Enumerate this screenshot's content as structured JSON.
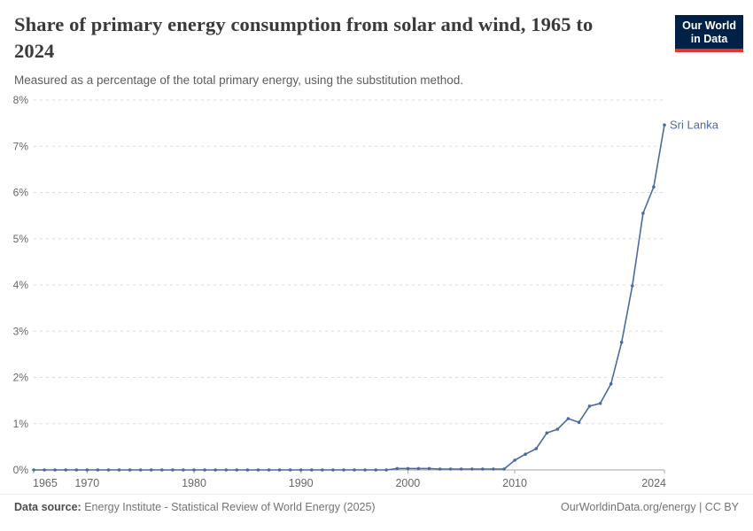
{
  "header": {
    "title_lines": [
      "Share of primary energy consumption from solar and wind, 1965 to",
      "2024"
    ],
    "subtitle": "Measured as a percentage of the total primary energy, using the substitution method."
  },
  "logo": {
    "line1": "Our World",
    "line2": "in Data",
    "bg_color": "#002147",
    "accent_color": "#e0362b",
    "text_color": "#ffffff"
  },
  "footer": {
    "datasource_label": "Data source:",
    "datasource_value": " Energy Institute - Statistical Review of World Energy (2025)",
    "link": "OurWorldinData.org/energy | CC BY"
  },
  "chart_data": {
    "type": "line",
    "title": "Share of primary energy consumption from solar and wind, 1965 to 2024",
    "subtitle": "Measured as a percentage of the total primary energy, using the substitution method.",
    "xlabel": "",
    "ylabel": "",
    "xlim": [
      1965,
      2024
    ],
    "ylim": [
      0,
      8
    ],
    "y_ticks": [
      0,
      1,
      2,
      3,
      4,
      5,
      6,
      7,
      8
    ],
    "y_tick_suffix": "%",
    "x_ticks": [
      1965,
      1970,
      1980,
      1990,
      2000,
      2010,
      2024
    ],
    "grid": "horizontal-dashed",
    "legend_position": "end-of-line-label",
    "colors": {
      "grid": "#dcdcdc",
      "axis": "#a6a6a6",
      "tick_label": "#666666"
    },
    "series": [
      {
        "name": "Sri Lanka",
        "color": "#4C6A9C",
        "x": [
          1965,
          1966,
          1967,
          1968,
          1969,
          1970,
          1971,
          1972,
          1973,
          1974,
          1975,
          1976,
          1977,
          1978,
          1979,
          1980,
          1981,
          1982,
          1983,
          1984,
          1985,
          1986,
          1987,
          1988,
          1989,
          1990,
          1991,
          1992,
          1993,
          1994,
          1995,
          1996,
          1997,
          1998,
          1999,
          2000,
          2001,
          2002,
          2003,
          2004,
          2005,
          2006,
          2007,
          2008,
          2009,
          2010,
          2011,
          2012,
          2013,
          2014,
          2015,
          2016,
          2017,
          2018,
          2019,
          2020,
          2021,
          2022,
          2023,
          2024
        ],
        "y": [
          0,
          0,
          0,
          0,
          0,
          0,
          0,
          0,
          0,
          0,
          0,
          0,
          0,
          0,
          0,
          0,
          0,
          0,
          0,
          0,
          0,
          0,
          0,
          0,
          0,
          0,
          0,
          0,
          0,
          0,
          0,
          0,
          0,
          0,
          0.03,
          0.03,
          0.03,
          0.03,
          0.02,
          0.02,
          0.02,
          0.02,
          0.02,
          0.02,
          0.02,
          0.21,
          0.34,
          0.46,
          0.8,
          0.88,
          1.11,
          1.03,
          1.38,
          1.44,
          1.86,
          2.76,
          3.98,
          5.55,
          6.12,
          7.46
        ]
      }
    ]
  }
}
